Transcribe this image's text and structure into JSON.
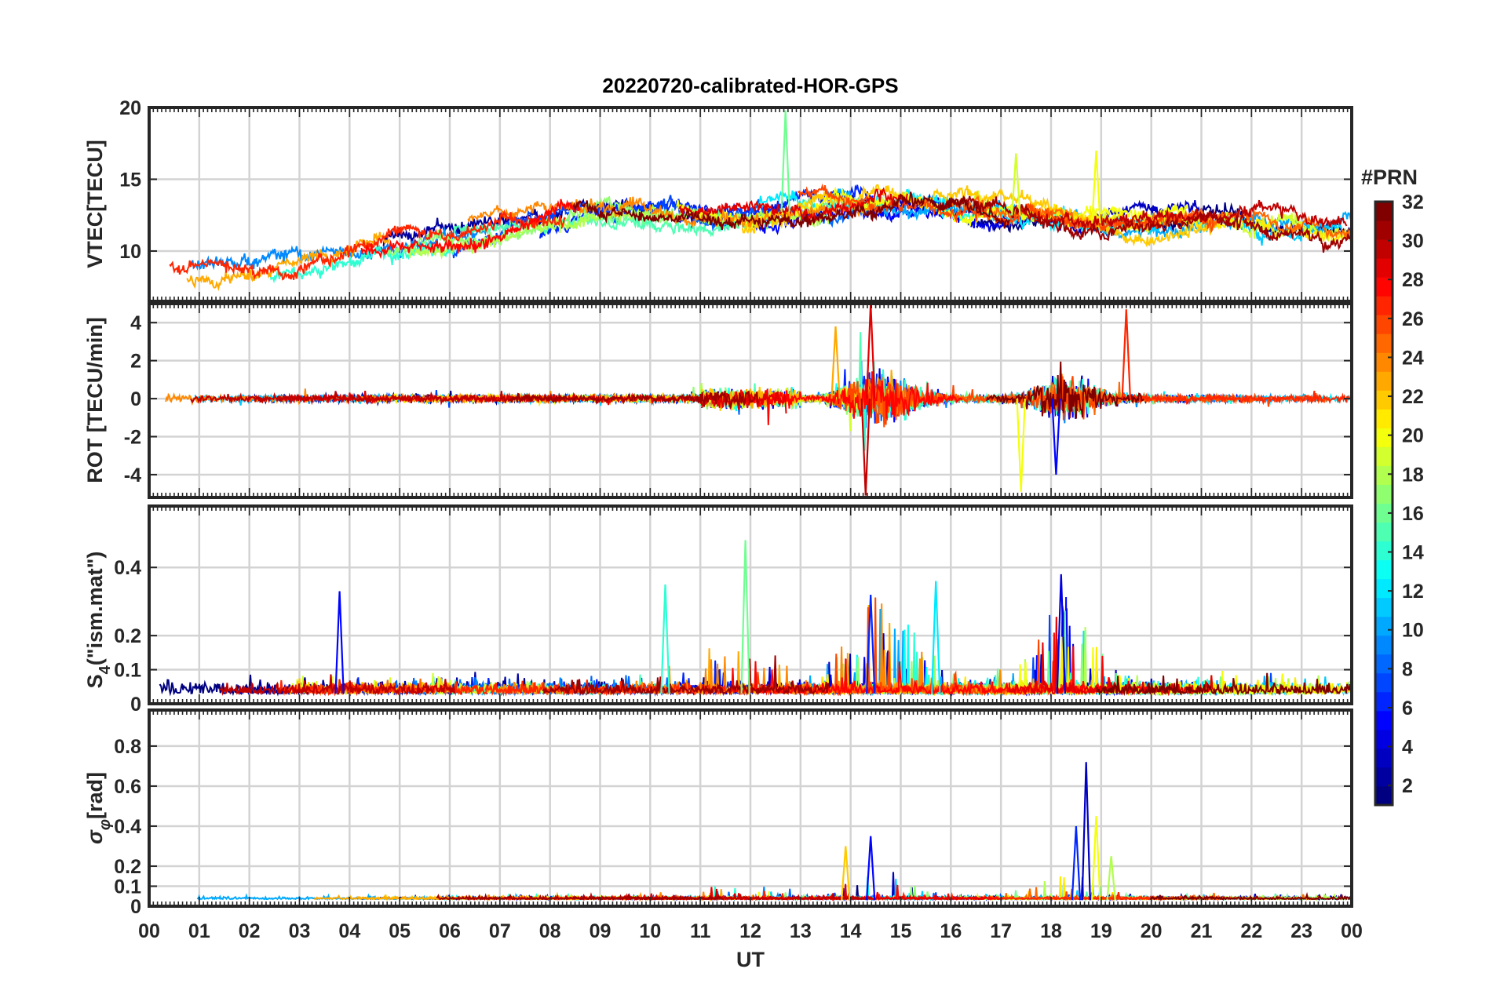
{
  "chart_data": {
    "type": "line",
    "title": "20220720-calibrated-HOR-GPS",
    "xlabel": "UT",
    "x_ticks": [
      "00",
      "01",
      "02",
      "03",
      "04",
      "05",
      "06",
      "07",
      "08",
      "09",
      "10",
      "11",
      "12",
      "13",
      "14",
      "15",
      "16",
      "17",
      "18",
      "19",
      "20",
      "21",
      "22",
      "23",
      "00"
    ],
    "xlim_hours": [
      0,
      24
    ],
    "colorbar": {
      "title": "#PRN",
      "range": [
        1,
        32
      ],
      "ticks": [
        "2",
        "4",
        "6",
        "8",
        "10",
        "12",
        "14",
        "16",
        "18",
        "20",
        "22",
        "24",
        "26",
        "28",
        "30",
        "32"
      ],
      "colormap": "jet"
    },
    "panels": [
      {
        "id": "vtec",
        "ylabel": "VTEC[TECU]",
        "ylim": [
          6.5,
          20
        ],
        "yticks": [
          10,
          15,
          20
        ],
        "ytick_labels": [
          "10",
          "15",
          "20"
        ],
        "series_summary": "32 PRN tracks; VTEC ~6-9 TECU at 00-02 UT, rising to ~11-14 TECU by 08-10 UT, ~12-15 TECU around 14-16 UT with peak near 20 TECU at ~12.7 UT (PRN 16), ~10-13 TECU at 18-24 UT"
      },
      {
        "id": "rot",
        "ylabel": "ROT [TECU/min]",
        "ylim": [
          -5.2,
          5
        ],
        "yticks": [
          -4,
          -2,
          0,
          2,
          4
        ],
        "ytick_labels": [
          "-4",
          "-2",
          "0",
          "2",
          "4"
        ],
        "series_summary": "ROT mostly within +/-1 TECU/min; strong fluctuations 13.5-15.5 UT (peaks +/-5) and 17-19.5 UT (peaks +4.7, -5)"
      },
      {
        "id": "s4",
        "ylabel_main": "S",
        "ylabel_sub": "4",
        "ylabel_rest": "(\"ism.mat\")",
        "ylim": [
          0,
          0.58
        ],
        "yticks": [
          0,
          0.1,
          0.2,
          0.4
        ],
        "ytick_labels": [
          "0",
          "0.1",
          "0.2",
          "0.4"
        ],
        "series_summary": "S4 background 0.02-0.1; spikes up to ~0.48 at 11.9 UT, ~0.38 at 18.2 UT, ~0.36 at 15.7 UT"
      },
      {
        "id": "sigma_phi",
        "ylabel_main": "σ",
        "ylabel_sub": "φ",
        "ylabel_rest": "[rad]",
        "ylim": [
          0,
          0.98
        ],
        "yticks": [
          0,
          0.1,
          0.2,
          0.4,
          0.6,
          0.8
        ],
        "ytick_labels": [
          "0",
          "0.1",
          "0.2",
          "0.4",
          "0.6",
          "0.8"
        ],
        "series_summary": "sigma phi background ~0.02-0.06 rad; spikes up to ~0.72 at 18.7 UT, ~0.45 at 18.9 UT, ~0.35 at 14.4 UT, ~0.3 at 13.9 UT"
      }
    ]
  }
}
